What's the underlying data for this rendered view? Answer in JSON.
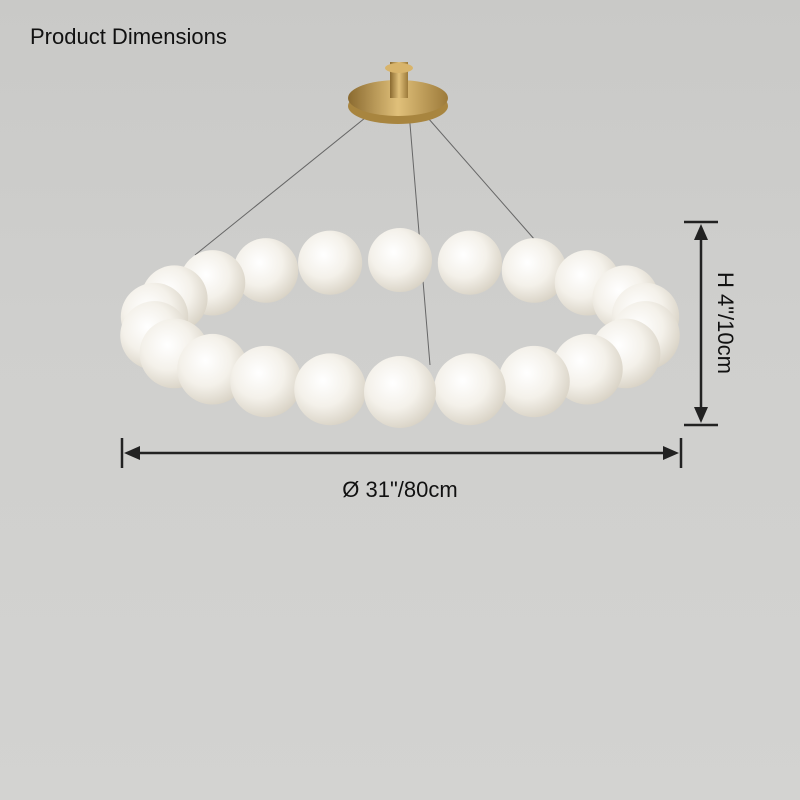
{
  "title": "Product Dimensions",
  "dimensions": {
    "diameter": "Ø 31\"/80cm",
    "height": "H 4\"/10cm"
  },
  "colors": {
    "brass": "#c9a25a",
    "globe": "#f4f1ea",
    "arrow": "#222222"
  }
}
